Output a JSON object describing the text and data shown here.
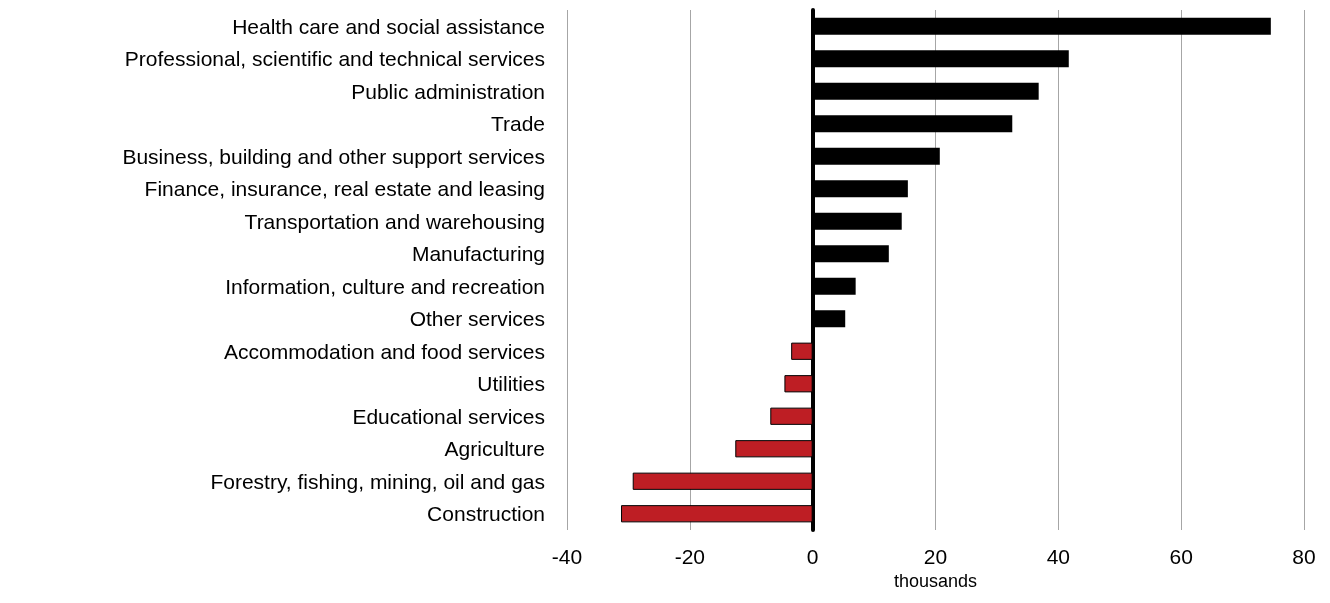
{
  "chart_data": {
    "type": "bar",
    "orientation": "horizontal",
    "xlabel": "thousands",
    "categories": [
      "Health care and social assistance",
      "Professional, scientific and technical services",
      "Public administration",
      "Trade",
      "Business, building and other support services",
      "Finance, insurance, real estate and leasing",
      "Transportation and warehousing",
      "Manufacturing",
      "Information, culture and recreation",
      "Other services",
      "Accommodation and food services",
      "Utilities",
      "Educational services",
      "Agriculture",
      "Forestry, fishing, mining, oil and gas",
      "Construction"
    ],
    "values": [
      74.6,
      41.7,
      36.8,
      32.5,
      20.7,
      15.5,
      14.5,
      12.4,
      7.0,
      5.3,
      -3.5,
      -4.6,
      -6.9,
      -12.6,
      -29.3,
      -31.2
    ],
    "colors": [
      "#000000",
      "#000000",
      "#000000",
      "#000000",
      "#000000",
      "#000000",
      "#000000",
      "#000000",
      "#000000",
      "#000000",
      "#be1e24",
      "#be1e24",
      "#be1e24",
      "#be1e24",
      "#be1e24",
      "#be1e24"
    ],
    "xlim": [
      -40,
      80
    ],
    "xticks": [
      -40,
      -20,
      0,
      20,
      40,
      60,
      80
    ],
    "grid": "x"
  }
}
